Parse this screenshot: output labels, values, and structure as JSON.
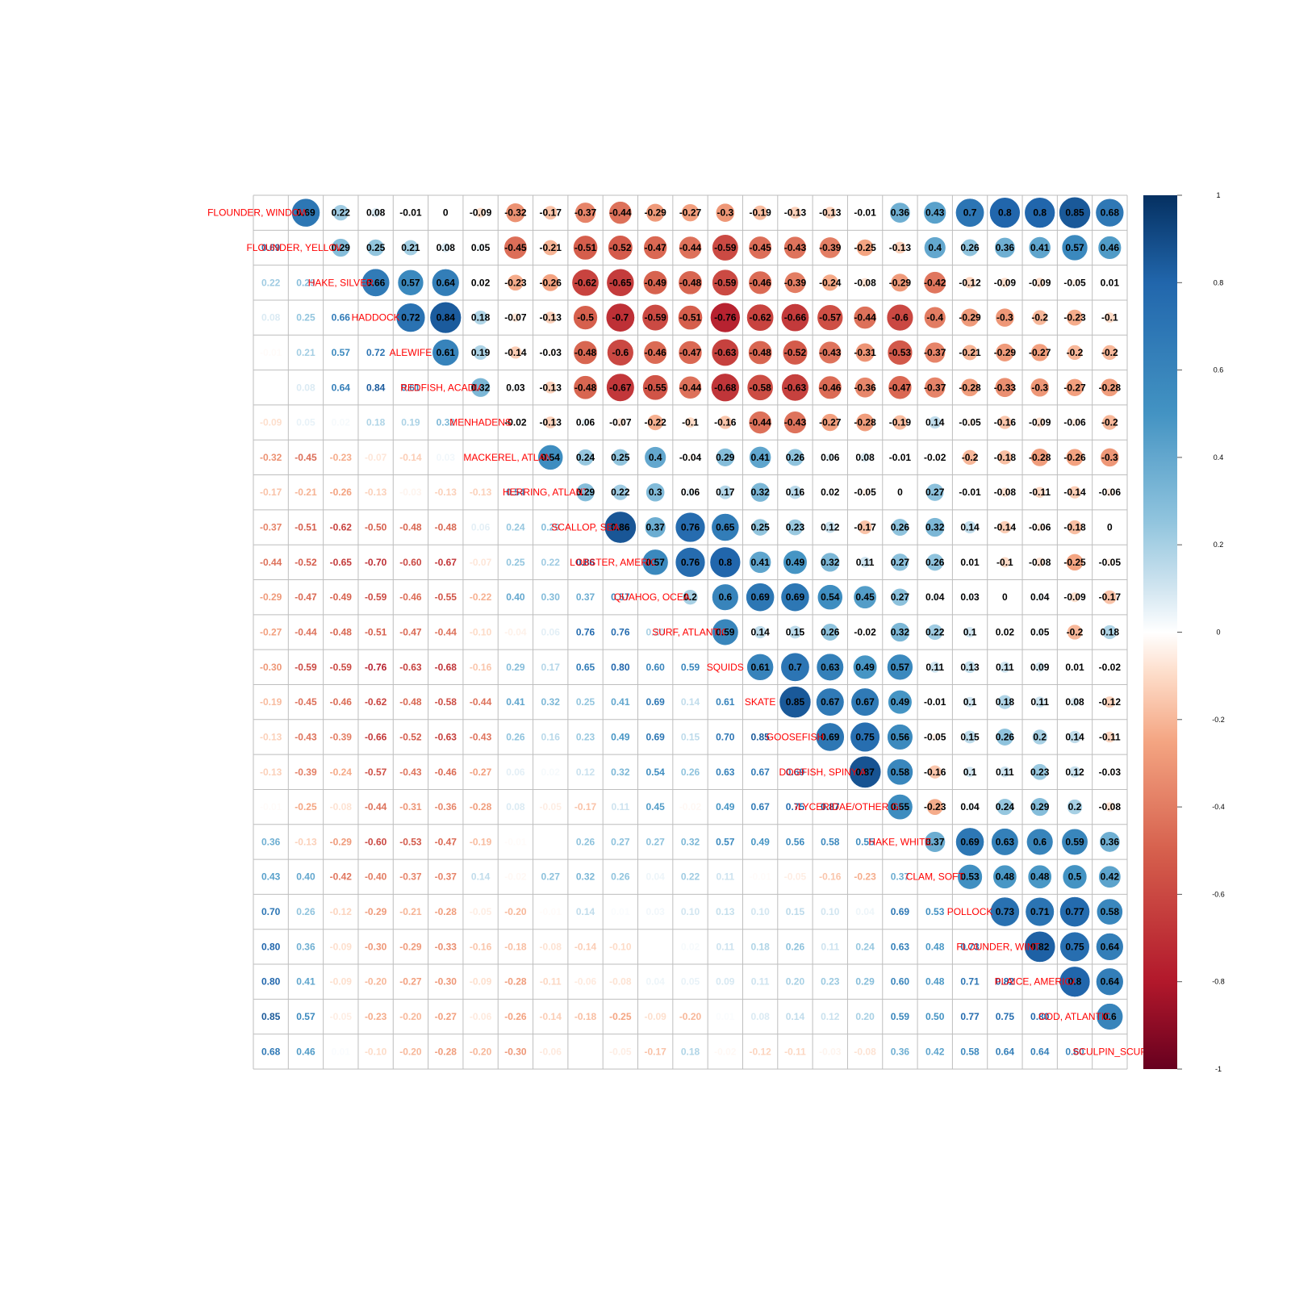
{
  "chart_data": {
    "type": "heatmap",
    "title": "",
    "variables": [
      "FLOUNDER, WINDOWPANE",
      "FLOUNDER, YELLOWTAIL",
      "HAKE, SILVER",
      "HADDOCK",
      "ALEWIFE",
      "REDFISH, ACADIAN",
      "MENHADENS",
      "MACKEREL, ATLANTIC",
      "HERRING, ATLANTIC",
      "SCALLOP, SEA",
      "LOBSTER, AMERICAN",
      "QUAHOG, OCEAN",
      "SURF, ATLANTIC",
      "SQUIDS",
      "SKATE",
      "GOOSEFISH",
      "DOGFISH, SPINY AGG",
      "GLYCERIDAE/OTHER GENERA**",
      "HAKE, WHITE",
      "CLAM, SOFT",
      "POLLOCK",
      "FLOUNDER, WINTER",
      "PLAICE, AMERICAN",
      "COD, ATLANTIC",
      "SCULPIN_SCUP"
    ],
    "diagonal_labels": [
      "FLOUNDER, WINDOWPANE",
      "FLOUNDER, YELLOWTAIL",
      "HAKE, SILVER",
      "HADDOCK",
      "ALEWIFE",
      "REDFISH, ACADIAN",
      "MENHADENS",
      "MACKEREL, ATLANTIC",
      "HERRING, ATLANTIC",
      "SCALLOP, SEA",
      "LOBSTER, AMERICAN",
      "QUAHOG, OCEAN",
      "SURF, ATLANTIC",
      "SQUIDS",
      "SKATE",
      "GOOSEFISH",
      "DOGFISH, SPINY AGG",
      "GLYCERIDAE/OTHER GENERA**",
      "HAKE, WHITE",
      "CLAM, SOFT",
      "POLLOCK",
      "FLOUNDER, WINTER",
      "PLAICE, AMERICAN",
      "COD, ATLANTIC",
      "SCULPIN_SCUP"
    ],
    "lower_label_decimals": 2,
    "matrix": [
      [
        1,
        0.69,
        0.22,
        0.08,
        -0.01,
        0,
        -0.09,
        -0.32,
        -0.17,
        -0.37,
        -0.44,
        -0.29,
        -0.27,
        -0.3,
        -0.19,
        -0.13,
        -0.13,
        -0.01,
        0.36,
        0.43,
        0.7,
        0.8,
        0.8,
        0.85,
        0.68
      ],
      [
        0.69,
        1,
        0.29,
        0.25,
        0.21,
        0.08,
        0.05,
        -0.45,
        -0.21,
        -0.51,
        -0.52,
        -0.47,
        -0.44,
        -0.59,
        -0.45,
        -0.43,
        -0.39,
        -0.25,
        -0.13,
        0.4,
        0.26,
        0.36,
        0.41,
        0.57,
        0.46
      ],
      [
        0.22,
        0.29,
        1,
        0.66,
        0.57,
        0.64,
        0.02,
        -0.23,
        -0.26,
        -0.62,
        -0.65,
        -0.49,
        -0.48,
        -0.59,
        -0.46,
        -0.39,
        -0.24,
        -0.08,
        -0.29,
        -0.42,
        -0.12,
        -0.09,
        -0.09,
        -0.05,
        0.01
      ],
      [
        0.08,
        0.25,
        0.66,
        1,
        0.72,
        0.84,
        0.18,
        -0.07,
        -0.13,
        -0.5,
        -0.7,
        -0.59,
        -0.51,
        -0.76,
        -0.62,
        -0.66,
        -0.57,
        -0.44,
        -0.6,
        -0.4,
        -0.29,
        -0.3,
        -0.2,
        -0.23,
        -0.1
      ],
      [
        -0.01,
        0.21,
        0.57,
        0.72,
        1,
        0.61,
        0.19,
        -0.14,
        -0.03,
        -0.48,
        -0.6,
        -0.46,
        -0.47,
        -0.63,
        -0.48,
        -0.52,
        -0.43,
        -0.31,
        -0.53,
        -0.37,
        -0.21,
        -0.29,
        -0.27,
        -0.2,
        -0.2
      ],
      [
        0,
        0.08,
        0.64,
        0.84,
        0.61,
        1,
        0.32,
        0.03,
        -0.13,
        -0.48,
        -0.67,
        -0.55,
        -0.44,
        -0.68,
        -0.58,
        -0.63,
        -0.46,
        -0.36,
        -0.47,
        -0.37,
        -0.28,
        -0.33,
        -0.3,
        -0.27,
        -0.28
      ],
      [
        -0.09,
        0.05,
        0.02,
        0.18,
        0.19,
        0.32,
        1,
        -0.02,
        -0.13,
        0.06,
        -0.07,
        -0.22,
        -0.1,
        -0.16,
        -0.44,
        -0.43,
        -0.27,
        -0.28,
        -0.19,
        0.14,
        -0.05,
        -0.16,
        -0.09,
        -0.06,
        -0.2
      ],
      [
        -0.32,
        -0.45,
        -0.23,
        -0.07,
        -0.14,
        0.03,
        -0.02,
        1,
        0.54,
        0.24,
        0.25,
        0.4,
        -0.04,
        0.29,
        0.41,
        0.26,
        0.06,
        0.08,
        -0.01,
        -0.02,
        -0.2,
        -0.18,
        -0.28,
        -0.26,
        -0.3
      ],
      [
        -0.17,
        -0.21,
        -0.26,
        -0.13,
        -0.03,
        -0.13,
        -0.13,
        0.54,
        1,
        0.29,
        0.22,
        0.3,
        0.06,
        0.17,
        0.32,
        0.16,
        0.02,
        -0.05,
        0,
        0.27,
        -0.01,
        -0.08,
        -0.11,
        -0.14,
        -0.06
      ],
      [
        -0.37,
        -0.51,
        -0.62,
        -0.5,
        -0.48,
        -0.48,
        0.06,
        0.24,
        0.29,
        1,
        0.86,
        0.37,
        0.76,
        0.65,
        0.25,
        0.23,
        0.12,
        -0.17,
        0.26,
        0.32,
        0.14,
        -0.14,
        -0.06,
        -0.18,
        0
      ],
      [
        -0.44,
        -0.52,
        -0.65,
        -0.7,
        -0.6,
        -0.67,
        -0.07,
        0.25,
        0.22,
        0.86,
        1,
        0.57,
        0.76,
        0.8,
        0.41,
        0.49,
        0.32,
        0.11,
        0.27,
        0.26,
        0.01,
        -0.1,
        -0.08,
        -0.25,
        -0.05
      ],
      [
        -0.29,
        -0.47,
        -0.49,
        -0.59,
        -0.46,
        -0.55,
        -0.22,
        0.4,
        0.3,
        0.37,
        0.57,
        1,
        0.2,
        0.6,
        0.69,
        0.69,
        0.54,
        0.45,
        0.27,
        0.04,
        0.03,
        0,
        0.04,
        -0.09,
        -0.17
      ],
      [
        -0.27,
        -0.44,
        -0.48,
        -0.51,
        -0.47,
        -0.44,
        -0.1,
        -0.04,
        0.06,
        0.76,
        0.76,
        0.2,
        1,
        0.59,
        0.14,
        0.15,
        0.26,
        -0.02,
        0.32,
        0.22,
        0.1,
        0.02,
        0.05,
        -0.2,
        0.18
      ],
      [
        -0.3,
        -0.59,
        -0.59,
        -0.76,
        -0.63,
        -0.68,
        -0.16,
        0.29,
        0.17,
        0.65,
        0.8,
        0.6,
        0.59,
        1,
        0.61,
        0.7,
        0.63,
        0.49,
        0.57,
        0.11,
        0.13,
        0.11,
        0.09,
        0.01,
        -0.02
      ],
      [
        -0.19,
        -0.45,
        -0.46,
        -0.62,
        -0.48,
        -0.58,
        -0.44,
        0.41,
        0.32,
        0.25,
        0.41,
        0.69,
        0.14,
        0.61,
        1,
        0.85,
        0.67,
        0.67,
        0.49,
        -0.01,
        0.1,
        0.18,
        0.11,
        0.08,
        -0.12
      ],
      [
        -0.13,
        -0.43,
        -0.39,
        -0.66,
        -0.52,
        -0.63,
        -0.43,
        0.26,
        0.16,
        0.23,
        0.49,
        0.69,
        0.15,
        0.7,
        0.85,
        1,
        0.69,
        0.75,
        0.56,
        -0.05,
        0.15,
        0.26,
        0.2,
        0.14,
        -0.11
      ],
      [
        -0.13,
        -0.39,
        -0.24,
        -0.57,
        -0.43,
        -0.46,
        -0.27,
        0.06,
        0.02,
        0.12,
        0.32,
        0.54,
        0.26,
        0.63,
        0.67,
        0.69,
        1,
        0.87,
        0.58,
        -0.16,
        0.1,
        0.11,
        0.23,
        0.12,
        -0.03
      ],
      [
        -0.01,
        -0.25,
        -0.08,
        -0.44,
        -0.31,
        -0.36,
        -0.28,
        0.08,
        -0.05,
        -0.17,
        0.11,
        0.45,
        -0.02,
        0.49,
        0.67,
        0.75,
        0.87,
        1,
        0.55,
        -0.23,
        0.04,
        0.24,
        0.29,
        0.2,
        -0.08
      ],
      [
        0.36,
        -0.13,
        -0.29,
        -0.6,
        -0.53,
        -0.47,
        -0.19,
        -0.01,
        0,
        0.26,
        0.27,
        0.27,
        0.32,
        0.57,
        0.49,
        0.56,
        0.58,
        0.55,
        1,
        0.37,
        0.69,
        0.63,
        0.6,
        0.59,
        0.36
      ],
      [
        0.43,
        0.4,
        -0.42,
        -0.4,
        -0.37,
        -0.37,
        0.14,
        -0.02,
        0.27,
        0.32,
        0.26,
        0.04,
        0.22,
        0.11,
        -0.01,
        -0.05,
        -0.16,
        -0.23,
        0.37,
        1,
        0.53,
        0.48,
        0.48,
        0.5,
        0.42
      ],
      [
        0.7,
        0.26,
        -0.12,
        -0.29,
        -0.21,
        -0.28,
        -0.05,
        -0.2,
        -0.01,
        0.14,
        0.01,
        0.03,
        0.1,
        0.13,
        0.1,
        0.15,
        0.1,
        0.04,
        0.69,
        0.53,
        1,
        0.73,
        0.71,
        0.77,
        0.58
      ],
      [
        0.8,
        0.36,
        -0.09,
        -0.3,
        -0.29,
        -0.33,
        -0.16,
        -0.18,
        -0.08,
        -0.14,
        -0.1,
        0,
        0.02,
        0.11,
        0.18,
        0.26,
        0.11,
        0.24,
        0.63,
        0.48,
        0.73,
        1,
        0.82,
        0.75,
        0.64
      ],
      [
        0.8,
        0.41,
        -0.09,
        -0.2,
        -0.27,
        -0.3,
        -0.09,
        -0.28,
        -0.11,
        -0.06,
        -0.08,
        0.04,
        0.05,
        0.09,
        0.11,
        0.2,
        0.23,
        0.29,
        0.6,
        0.48,
        0.71,
        0.82,
        1,
        0.8,
        0.64
      ],
      [
        0.85,
        0.57,
        -0.05,
        -0.23,
        -0.2,
        -0.27,
        -0.06,
        -0.26,
        -0.14,
        -0.18,
        -0.25,
        -0.09,
        -0.2,
        0.01,
        0.08,
        0.14,
        0.12,
        0.2,
        0.59,
        0.5,
        0.77,
        0.75,
        0.8,
        1,
        0.6
      ],
      [
        0.68,
        0.46,
        0.01,
        -0.1,
        -0.2,
        -0.28,
        -0.2,
        -0.3,
        -0.06,
        0,
        -0.05,
        -0.17,
        0.18,
        -0.02,
        -0.12,
        -0.11,
        -0.03,
        -0.08,
        0.36,
        0.42,
        0.58,
        0.64,
        0.64,
        0.6,
        1
      ]
    ],
    "colorbar": {
      "tick_labels": [
        "1",
        "0.8",
        "0.6",
        "0.4",
        "0.2",
        "0",
        "-0.2",
        "-0.4",
        "-0.6",
        "-0.8",
        "-1"
      ],
      "range": [
        -1,
        1
      ]
    },
    "colors": {
      "negative_strong": "#67001F",
      "negative_mid": "#D6604D",
      "negative_light": "#FDDBC7",
      "zero": "#FFFFFF",
      "positive_light": "#D1E5F0",
      "positive_mid": "#4393C3",
      "positive_strong": "#053061",
      "diagonal_label": "#FF0000",
      "grid": "#BEBEBE"
    },
    "upper": "circle",
    "lower": "number",
    "legend_position": "right"
  }
}
